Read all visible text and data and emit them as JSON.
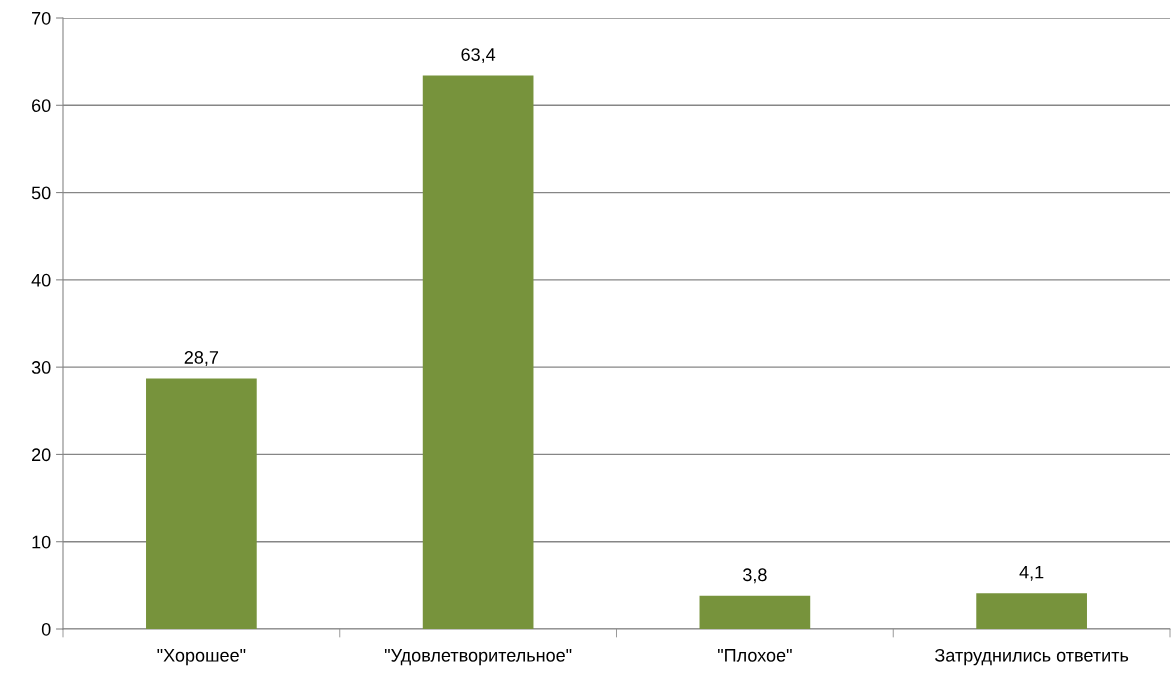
{
  "chart_data": {
    "type": "bar",
    "categories": [
      "\"Хорошее\"",
      "\"Удовлетворительное\"",
      "\"Плохое\"",
      "Затруднились ответить"
    ],
    "values": [
      28.7,
      63.4,
      3.8,
      4.1
    ],
    "color": "#77933c",
    "value_labels": [
      "28,7",
      "63,4",
      "3,8",
      "4,1"
    ],
    "ylim": [
      0,
      70
    ],
    "yticks": [
      0,
      10,
      20,
      30,
      40,
      50,
      60,
      70
    ],
    "grid": "y",
    "legend": false
  }
}
